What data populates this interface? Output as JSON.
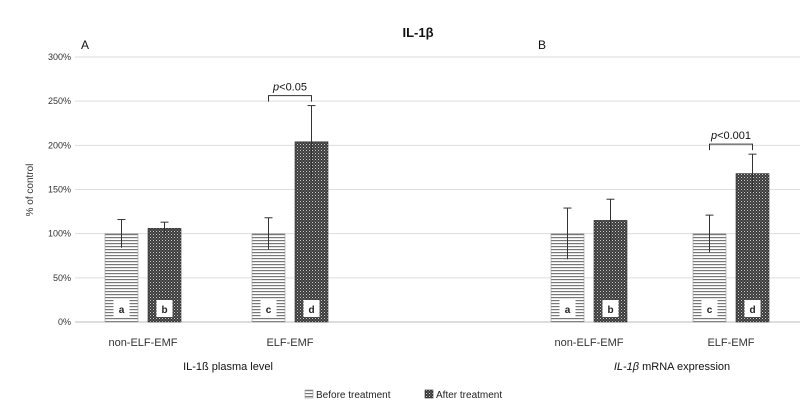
{
  "chart_data": {
    "type": "bar",
    "title": "IL-1β",
    "ylabel": "% of control",
    "ylim": [
      0,
      300
    ],
    "yticks": [
      "0%",
      "50%",
      "100%",
      "150%",
      "200%",
      "250%",
      "300%"
    ],
    "grid": true,
    "legend_position": "bottom",
    "series": [
      {
        "name": "Before treatment",
        "pattern": "horizontal-lines"
      },
      {
        "name": "After treatment",
        "pattern": "dense-dots"
      }
    ],
    "panels": [
      {
        "label": "A",
        "xlabel": "IL-1ß plasma level",
        "xlabel_italic_prefix": "",
        "xlabel_rest": "IL-1ß plasma level",
        "groups": [
          {
            "category": "non-ELF-EMF",
            "bars": [
              {
                "series": 0,
                "value": 100,
                "error": 16,
                "letter": "a"
              },
              {
                "series": 1,
                "value": 106,
                "error": 7,
                "letter": "b"
              }
            ],
            "significance": ""
          },
          {
            "category": "ELF-EMF",
            "bars": [
              {
                "series": 0,
                "value": 100,
                "error": 18,
                "letter": "c"
              },
              {
                "series": 1,
                "value": 204,
                "error": 41,
                "letter": "d"
              }
            ],
            "significance_p": "p",
            "significance_rest": "<0.05"
          }
        ]
      },
      {
        "label": "B",
        "xlabel": "IL-1β mRNA expression",
        "xlabel_italic_prefix": "IL-1β",
        "xlabel_rest": " mRNA expression",
        "groups": [
          {
            "category": "non-ELF-EMF",
            "bars": [
              {
                "series": 0,
                "value": 100,
                "error": 29,
                "letter": "a"
              },
              {
                "series": 1,
                "value": 115,
                "error": 24,
                "letter": "b"
              }
            ],
            "significance": ""
          },
          {
            "category": "ELF-EMF",
            "bars": [
              {
                "series": 0,
                "value": 100,
                "error": 21,
                "letter": "c"
              },
              {
                "series": 1,
                "value": 168,
                "error": 22,
                "letter": "d"
              }
            ],
            "significance_p": "p",
            "significance_rest": "<0.001"
          }
        ]
      }
    ]
  }
}
